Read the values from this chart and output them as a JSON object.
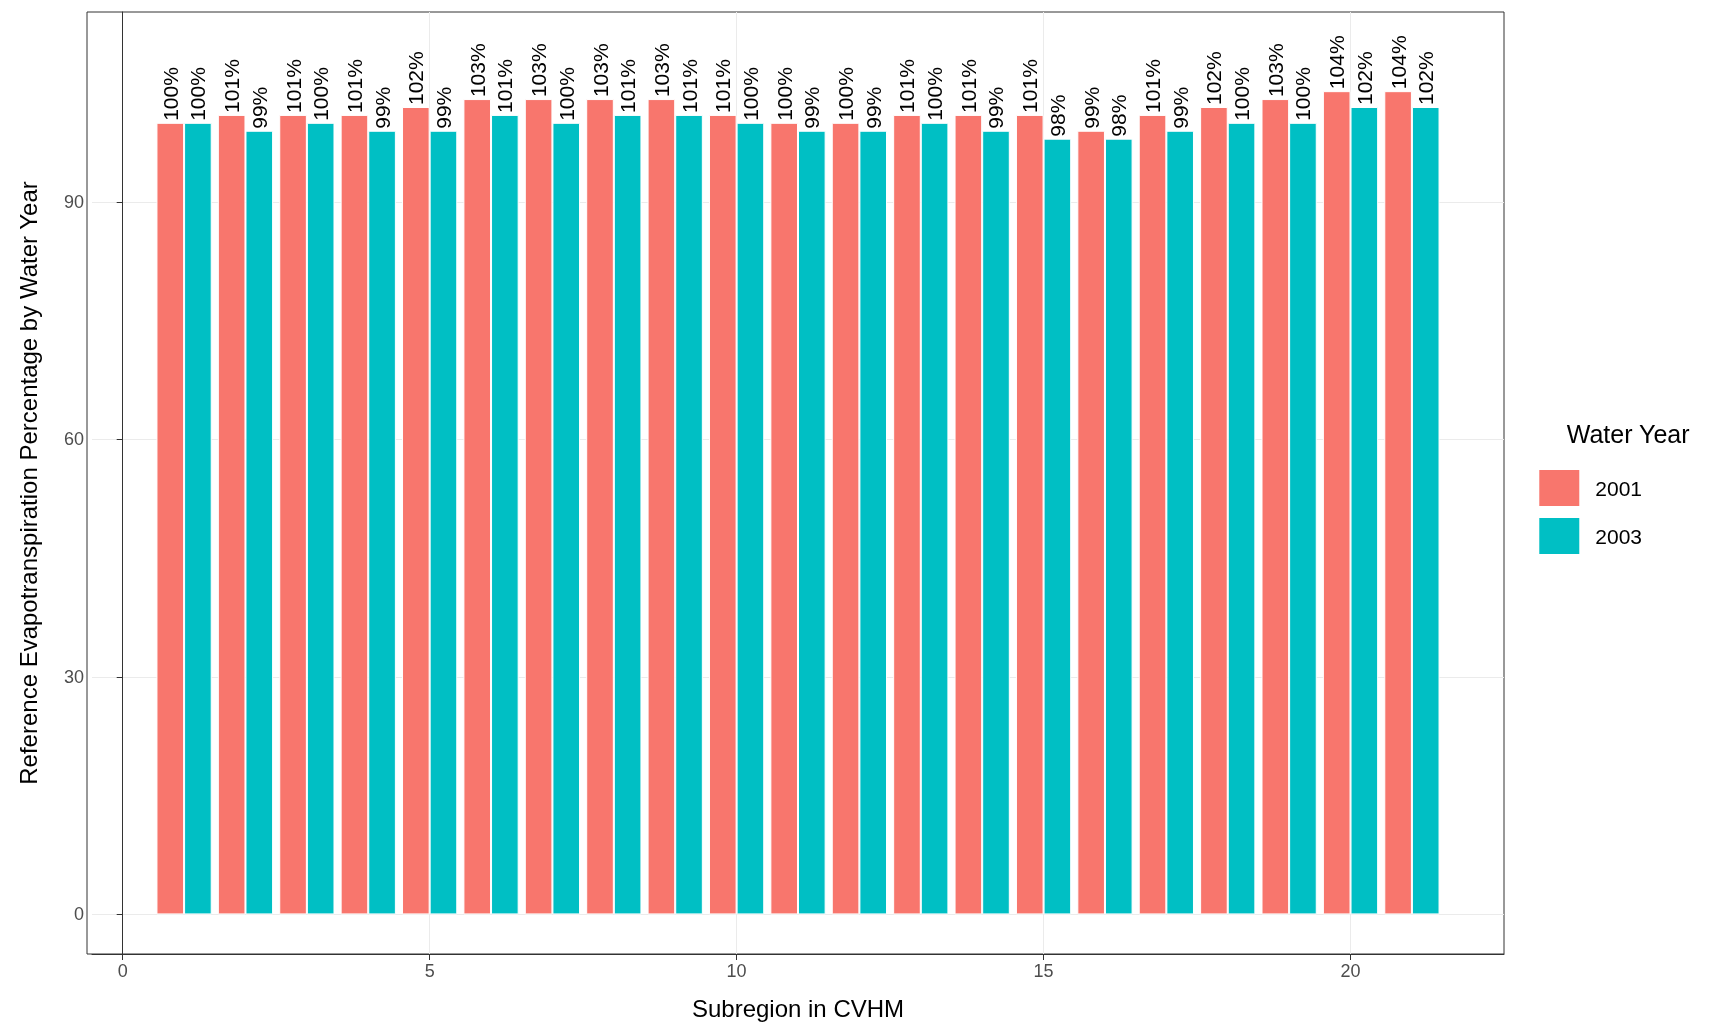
{
  "chart_data": {
    "type": "bar",
    "xlabel": "Subregion in CVHM",
    "ylabel": "Reference Evapotranspiration Percentage by Water Year",
    "legend_title": "Water Year",
    "x": [
      1,
      2,
      3,
      4,
      5,
      6,
      7,
      8,
      9,
      10,
      11,
      12,
      13,
      14,
      15,
      16,
      17,
      18,
      19,
      20,
      21
    ],
    "series": [
      {
        "name": "2001",
        "color": "#f8766d",
        "values": [
          100,
          101,
          101,
          101,
          102,
          103,
          103,
          103,
          103,
          101,
          100,
          100,
          101,
          101,
          101,
          99,
          101,
          102,
          103,
          104,
          104
        ],
        "value_labels": [
          "100%",
          "101%",
          "101%",
          "101%",
          "102%",
          "103%",
          "103%",
          "103%",
          "103%",
          "101%",
          "100%",
          "100%",
          "101%",
          "101%",
          "101%",
          "99%",
          "101%",
          "102%",
          "103%",
          "104%",
          "104%"
        ]
      },
      {
        "name": "2003",
        "color": "#00bfc4",
        "values": [
          100,
          99,
          100,
          99,
          99,
          101,
          100,
          101,
          101,
          100,
          99,
          99,
          100,
          99,
          98,
          98,
          99,
          100,
          100,
          102,
          102
        ],
        "value_labels": [
          "100%",
          "99%",
          "100%",
          "99%",
          "99%",
          "101%",
          "100%",
          "101%",
          "101%",
          "100%",
          "99%",
          "99%",
          "100%",
          "99%",
          "98%",
          "98%",
          "99%",
          "100%",
          "100%",
          "102%",
          "102%"
        ]
      }
    ],
    "xlim": [
      -0.5,
      22.5
    ],
    "xticks": [
      0,
      5,
      10,
      15,
      20
    ],
    "ylim": [
      -5,
      114
    ],
    "yticks": [
      0,
      30,
      60,
      90
    ],
    "grid": true,
    "legend": "right"
  }
}
